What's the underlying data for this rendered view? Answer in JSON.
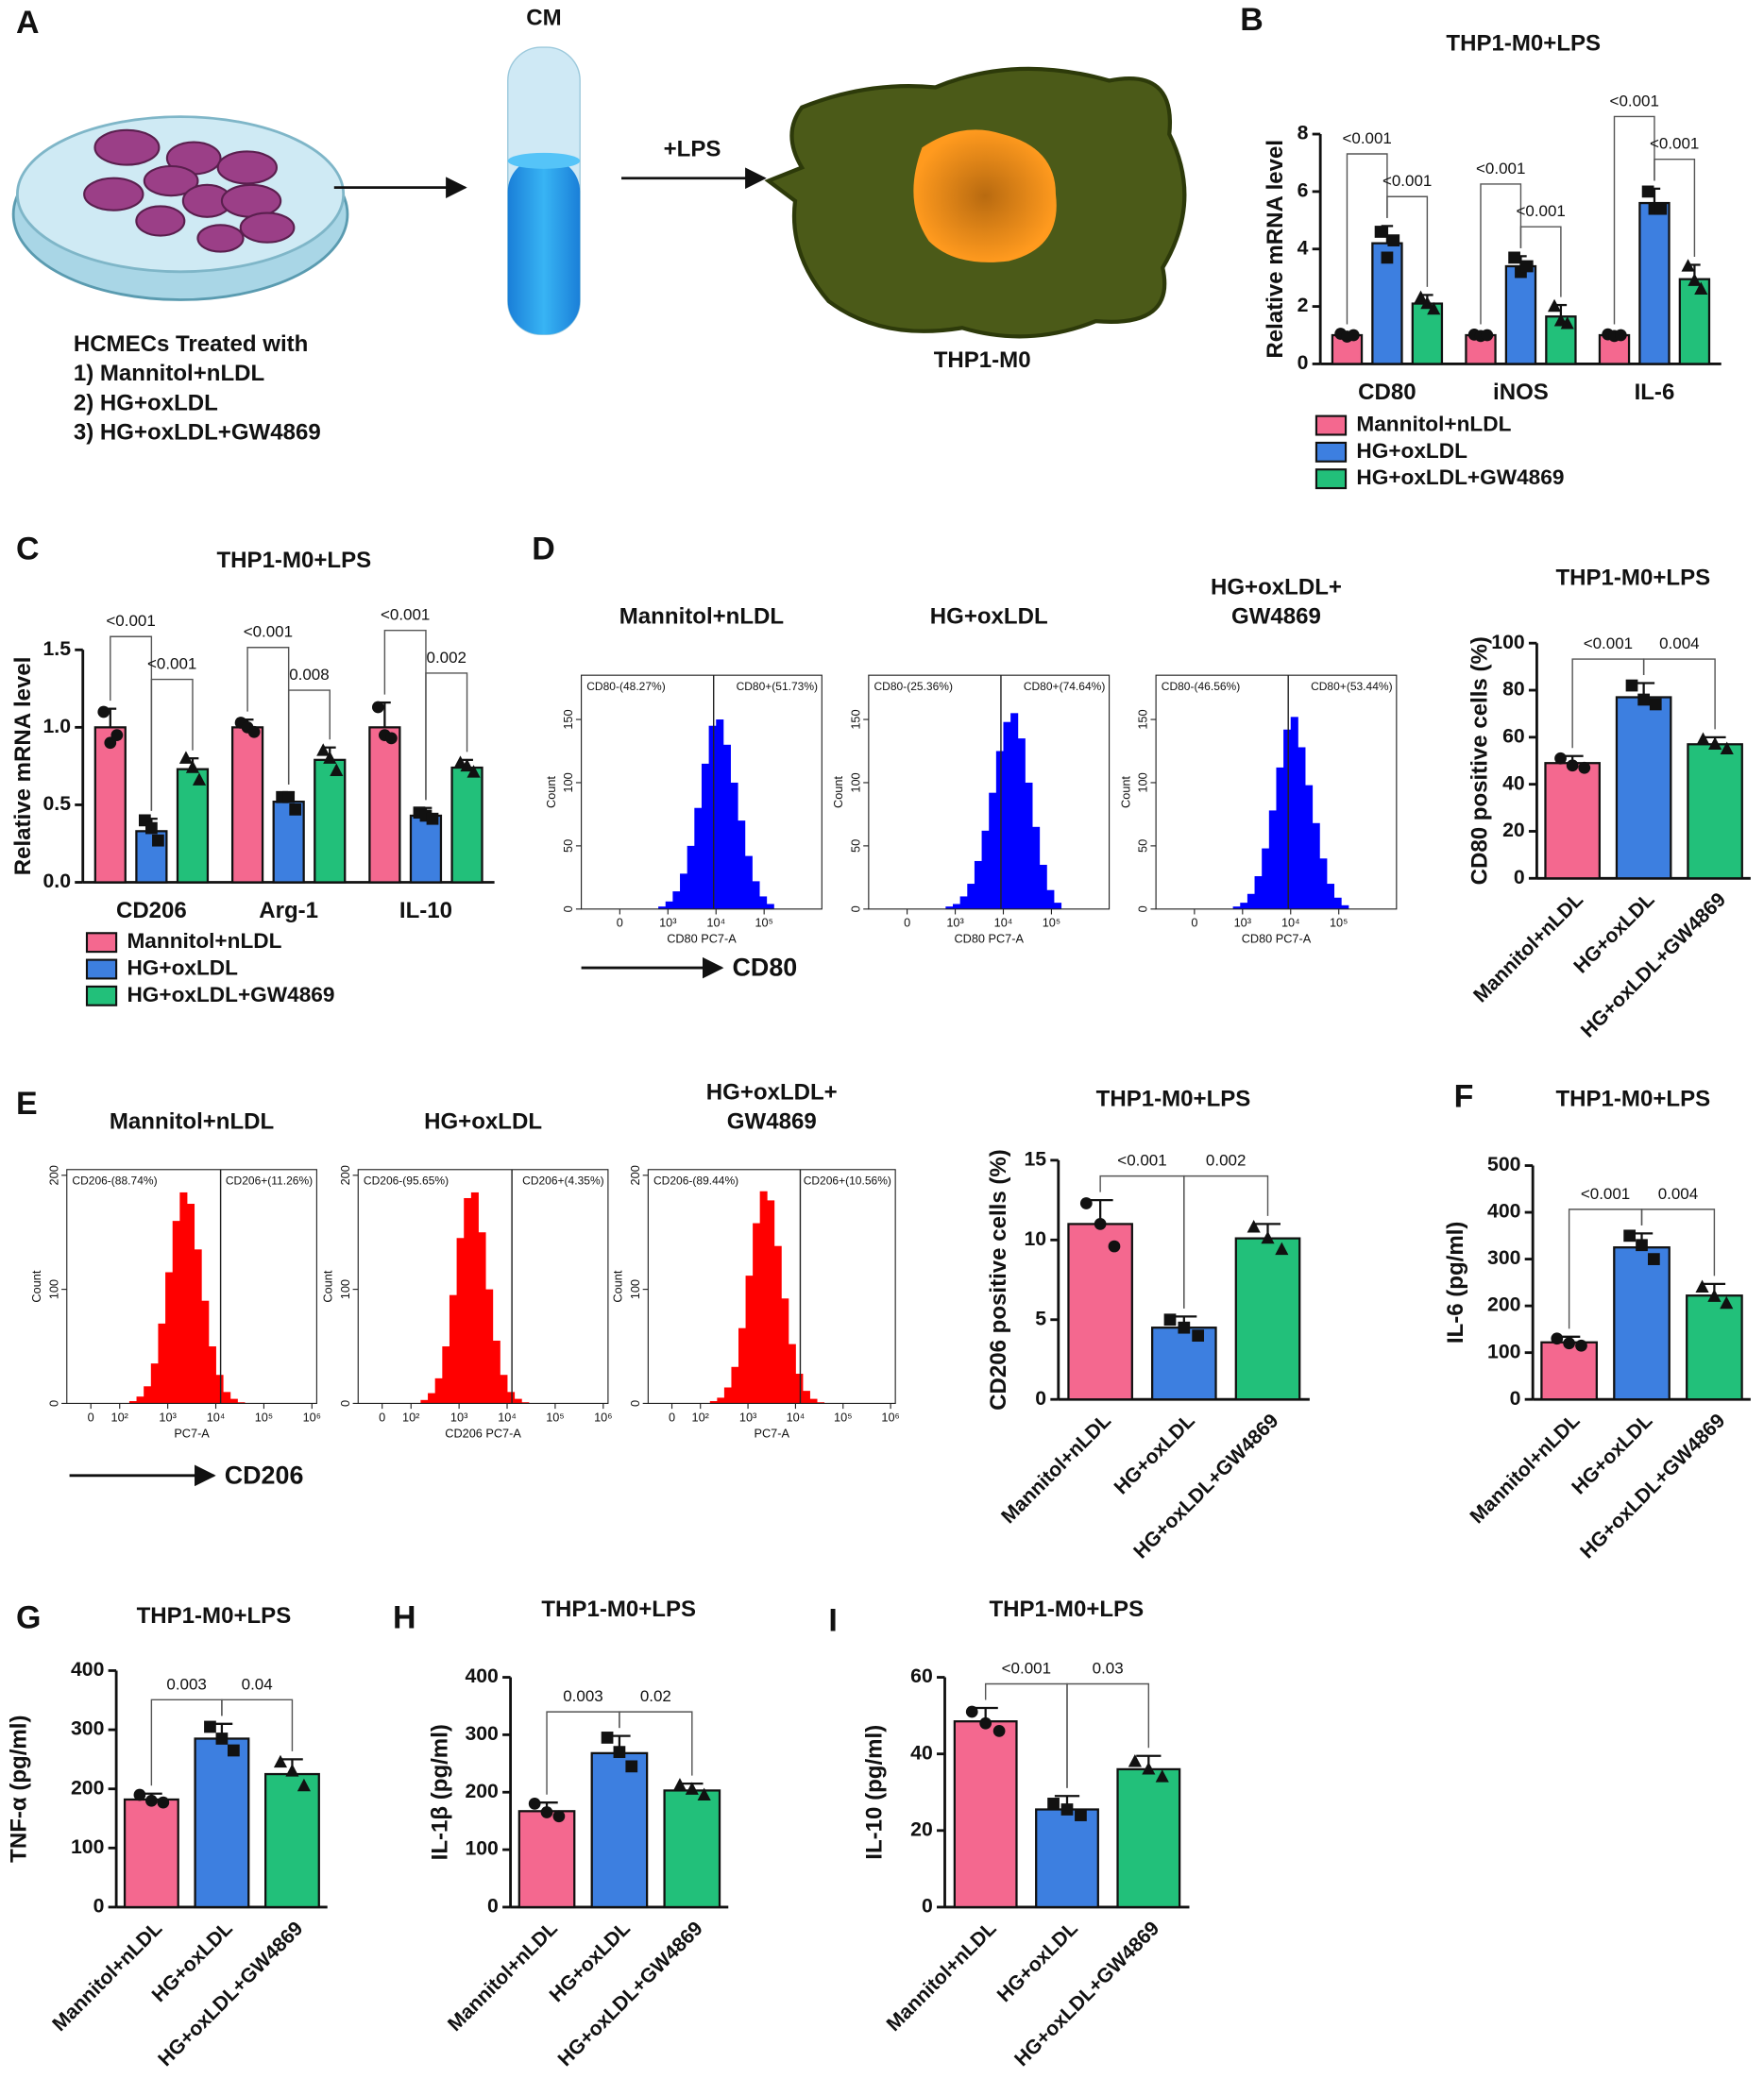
{
  "panel_labels": [
    "A",
    "B",
    "C",
    "D",
    "E",
    "F",
    "G",
    "H",
    "I"
  ],
  "diagram": {
    "tube_label": "CM",
    "treatment": "+LPS",
    "cell_label": "THP1-M0",
    "caption": [
      "HCMECs Treated with",
      "1) Mannitol+nLDL",
      "2) HG+oxLDL",
      "3) HG+oxLDL+GW4869"
    ]
  },
  "chart_data": [
    {
      "type": "grouped_bar",
      "title": "THP1-M0+LPS",
      "ylabel": "Relative mRNA level",
      "categories": [
        "CD80",
        "iNOS",
        "IL-6"
      ],
      "ylim": [
        0,
        8
      ],
      "yticks": [
        0,
        2,
        4,
        6,
        8
      ],
      "series": [
        {
          "name": "Mannitol+nLDL",
          "color": "#f4688f",
          "marker": "circle",
          "values": [
            1.0,
            1.0,
            1.0
          ],
          "errors": [
            0.1,
            0.1,
            0.1
          ],
          "points": [
            [
              1.05,
              0.95,
              1.0
            ],
            [
              1.02,
              0.97,
              1.0
            ],
            [
              1.03,
              0.97,
              1.0
            ]
          ]
        },
        {
          "name": "HG+oxLDL",
          "color": "#3d7fe0",
          "marker": "square",
          "values": [
            4.2,
            3.4,
            5.6
          ],
          "errors": [
            0.6,
            0.35,
            0.5
          ],
          "points": [
            [
              4.6,
              3.7,
              4.3
            ],
            [
              3.7,
              3.2,
              3.4
            ],
            [
              6.0,
              5.4,
              5.4
            ]
          ]
        },
        {
          "name": "HG+oxLDL+GW4869",
          "color": "#22c07a",
          "marker": "triangle",
          "values": [
            2.1,
            1.65,
            2.95
          ],
          "errors": [
            0.3,
            0.4,
            0.5
          ],
          "points": [
            [
              2.3,
              2.1,
              1.9
            ],
            [
              2.0,
              1.5,
              1.4
            ],
            [
              3.4,
              2.9,
              2.6
            ]
          ]
        }
      ],
      "comparisons": [
        {
          "category": 0,
          "pair": [
            0,
            1
          ],
          "label": "<0.001"
        },
        {
          "category": 0,
          "pair": [
            1,
            2
          ],
          "label": "<0.001"
        },
        {
          "category": 1,
          "pair": [
            0,
            1
          ],
          "label": "<0.001"
        },
        {
          "category": 1,
          "pair": [
            1,
            2
          ],
          "label": "<0.001"
        },
        {
          "category": 2,
          "pair": [
            0,
            1
          ],
          "label": "<0.001"
        },
        {
          "category": 2,
          "pair": [
            1,
            2
          ],
          "label": "<0.001"
        }
      ]
    },
    {
      "type": "grouped_bar",
      "title": "THP1-M0+LPS",
      "ylabel": "Relative mRNA level",
      "categories": [
        "CD206",
        "Arg-1",
        "IL-10"
      ],
      "ylim": [
        0,
        1.5
      ],
      "yticks": [
        {
          "value": 0,
          "label": "0.0"
        },
        0.5,
        {
          "value": 1,
          "label": "1.0"
        },
        1.5
      ],
      "series": [
        {
          "name": "Mannitol+nLDL",
          "color": "#f4688f",
          "marker": "circle",
          "values": [
            1.0,
            1.0,
            1.0
          ],
          "errors": [
            0.12,
            0.05,
            0.16
          ],
          "points": [
            [
              1.1,
              0.9,
              0.95
            ],
            [
              1.03,
              1.0,
              0.97
            ],
            [
              1.13,
              0.95,
              0.93
            ]
          ]
        },
        {
          "name": "HG+oxLDL",
          "color": "#3d7fe0",
          "marker": "square",
          "values": [
            0.33,
            0.52,
            0.43
          ],
          "errors": [
            0.08,
            0.06,
            0.05
          ],
          "points": [
            [
              0.4,
              0.35,
              0.27
            ],
            [
              0.55,
              0.55,
              0.47
            ],
            [
              0.45,
              0.43,
              0.41
            ]
          ]
        },
        {
          "name": "HG+oxLDL+GW4869",
          "color": "#22c07a",
          "marker": "triangle",
          "values": [
            0.73,
            0.79,
            0.74
          ],
          "errors": [
            0.07,
            0.08,
            0.05
          ],
          "points": [
            [
              0.8,
              0.74,
              0.66
            ],
            [
              0.85,
              0.8,
              0.72
            ],
            [
              0.77,
              0.75,
              0.71
            ]
          ]
        }
      ],
      "comparisons": [
        {
          "category": 0,
          "pair": [
            0,
            1
          ],
          "label": "<0.001"
        },
        {
          "category": 0,
          "pair": [
            1,
            2
          ],
          "label": "<0.001"
        },
        {
          "category": 1,
          "pair": [
            0,
            1
          ],
          "label": "<0.001"
        },
        {
          "category": 1,
          "pair": [
            1,
            2
          ],
          "label": "0.008"
        },
        {
          "category": 2,
          "pair": [
            0,
            1
          ],
          "label": "<0.001"
        },
        {
          "category": 2,
          "pair": [
            1,
            2
          ],
          "label": "0.002"
        }
      ]
    },
    {
      "type": "bar",
      "title": "THP1-M0+LPS",
      "ylabel": "CD80 positive cells (%)",
      "categories": [
        "Mannitol+nLDL",
        "HG+oxLDL",
        "HG+oxLDL+GW4869"
      ],
      "colors": [
        "#f4688f",
        "#3d7fe0",
        "#22c07a"
      ],
      "markers": [
        "circle",
        "square",
        "triangle"
      ],
      "ylim": [
        0,
        100
      ],
      "yticks": [
        0,
        20,
        40,
        60,
        80,
        100
      ],
      "values": [
        49,
        77,
        57
      ],
      "errors": [
        3,
        6,
        3
      ],
      "points": [
        [
          51,
          48,
          47
        ],
        [
          82,
          76,
          74
        ],
        [
          59,
          57,
          55
        ]
      ],
      "comparisons": [
        {
          "pair": [
            0,
            1
          ],
          "label": "<0.001"
        },
        {
          "pair": [
            1,
            2
          ],
          "label": "0.004"
        }
      ]
    },
    {
      "type": "bar",
      "title": "THP1-M0+LPS",
      "ylabel": "CD206 positive cells (%)",
      "categories": [
        "Mannitol+nLDL",
        "HG+oxLDL",
        "HG+oxLDL+GW4869"
      ],
      "colors": [
        "#f4688f",
        "#3d7fe0",
        "#22c07a"
      ],
      "markers": [
        "circle",
        "square",
        "triangle"
      ],
      "ylim": [
        0,
        15
      ],
      "yticks": [
        0,
        5,
        10,
        15
      ],
      "values": [
        11,
        4.5,
        10.1
      ],
      "errors": [
        1.5,
        0.7,
        0.9
      ],
      "points": [
        [
          12.3,
          11,
          9.6
        ],
        [
          5,
          4.5,
          4
        ],
        [
          10.8,
          10.1,
          9.4
        ]
      ],
      "comparisons": [
        {
          "pair": [
            0,
            1
          ],
          "label": "<0.001"
        },
        {
          "pair": [
            1,
            2
          ],
          "label": "0.002"
        }
      ]
    },
    {
      "type": "bar",
      "title": "THP1-M0+LPS",
      "ylabel": "IL-6 (pg/ml)",
      "categories": [
        "Mannitol+nLDL",
        "HG+oxLDL",
        "HG+oxLDL+GW4869"
      ],
      "colors": [
        "#f4688f",
        "#3d7fe0",
        "#22c07a"
      ],
      "markers": [
        "circle",
        "square",
        "triangle"
      ],
      "ylim": [
        0,
        500
      ],
      "yticks": [
        0,
        100,
        200,
        300,
        400,
        500
      ],
      "values": [
        122,
        325,
        222
      ],
      "errors": [
        12,
        30,
        25
      ],
      "points": [
        [
          130,
          120,
          115
        ],
        [
          350,
          330,
          300
        ],
        [
          240,
          220,
          205
        ]
      ],
      "comparisons": [
        {
          "pair": [
            0,
            1
          ],
          "label": "<0.001"
        },
        {
          "pair": [
            1,
            2
          ],
          "label": "0.004"
        }
      ]
    },
    {
      "type": "bar",
      "title": "THP1-M0+LPS",
      "ylabel": "TNF-α (pg/ml)",
      "categories": [
        "Mannitol+nLDL",
        "HG+oxLDL",
        "HG+oxLDL+GW4869"
      ],
      "colors": [
        "#f4688f",
        "#3d7fe0",
        "#22c07a"
      ],
      "markers": [
        "circle",
        "square",
        "triangle"
      ],
      "ylim": [
        0,
        400
      ],
      "yticks": [
        0,
        100,
        200,
        300,
        400
      ],
      "values": [
        182,
        285,
        225
      ],
      "errors": [
        10,
        25,
        25
      ],
      "points": [
        [
          190,
          180,
          177
        ],
        [
          305,
          285,
          265
        ],
        [
          245,
          230,
          205
        ]
      ],
      "comparisons": [
        {
          "pair": [
            0,
            1
          ],
          "label": "0.003"
        },
        {
          "pair": [
            1,
            2
          ],
          "label": "0.04"
        }
      ]
    },
    {
      "type": "bar",
      "title": "THP1-M0+LPS",
      "ylabel": "IL-1β (pg/ml)",
      "categories": [
        "Mannitol+nLDL",
        "HG+oxLDL",
        "HG+oxLDL+GW4869"
      ],
      "colors": [
        "#f4688f",
        "#3d7fe0",
        "#22c07a"
      ],
      "markers": [
        "circle",
        "square",
        "triangle"
      ],
      "ylim": [
        0,
        400
      ],
      "yticks": [
        0,
        100,
        200,
        300,
        400
      ],
      "values": [
        167,
        268,
        203
      ],
      "errors": [
        15,
        30,
        12
      ],
      "points": [
        [
          180,
          165,
          158
        ],
        [
          295,
          270,
          245
        ],
        [
          212,
          205,
          195
        ]
      ],
      "comparisons": [
        {
          "pair": [
            0,
            1
          ],
          "label": "0.003"
        },
        {
          "pair": [
            1,
            2
          ],
          "label": "0.02"
        }
      ]
    },
    {
      "type": "bar",
      "title": "THP1-M0+LPS",
      "ylabel": "IL-10 (pg/ml)",
      "categories": [
        "Mannitol+nLDL",
        "HG+oxLDL",
        "HG+oxLDL+GW4869"
      ],
      "colors": [
        "#f4688f",
        "#3d7fe0",
        "#22c07a"
      ],
      "markers": [
        "circle",
        "square",
        "triangle"
      ],
      "ylim": [
        0,
        60
      ],
      "yticks": [
        0,
        20,
        40,
        60
      ],
      "values": [
        48.5,
        25.5,
        36
      ],
      "errors": [
        3.5,
        3.5,
        3.5
      ],
      "points": [
        [
          51,
          48,
          46
        ],
        [
          27,
          25.5,
          24
        ],
        [
          38,
          36,
          34
        ]
      ],
      "comparisons": [
        {
          "pair": [
            0,
            1
          ],
          "label": "<0.001"
        },
        {
          "pair": [
            1,
            2
          ],
          "label": "0.03"
        }
      ]
    }
  ],
  "flow_panels": [
    {
      "arrow_label": "CD80",
      "color": "#0000ff",
      "ylabel": "Count",
      "ylim": [
        0,
        185
      ],
      "yticks": [
        0,
        50,
        100,
        150
      ],
      "xlim": [
        1.2,
        6.2
      ],
      "xticks": [
        {
          "value": 2,
          "label": "0"
        },
        {
          "value": 3,
          "label": "10³"
        },
        {
          "value": 4,
          "label": "10⁴"
        },
        {
          "value": 5,
          "label": "10⁵"
        }
      ],
      "plots": [
        {
          "title": [
            "Mannitol+nLDL"
          ],
          "xlabel": "CD80 PC7-A",
          "gate": 3.95,
          "gate_labels": [
            "CD80-(48.27%)",
            "CD80+(51.73%)"
          ],
          "bins": [
            2.8,
            2.95,
            3.1,
            3.25,
            3.4,
            3.55,
            3.7,
            3.85,
            4.0,
            4.15,
            4.3,
            4.45,
            4.6,
            4.75,
            4.9,
            5.05,
            5.2
          ],
          "counts": [
            2,
            6,
            14,
            28,
            50,
            80,
            115,
            145,
            150,
            130,
            100,
            70,
            42,
            22,
            10,
            4
          ]
        },
        {
          "title": [
            "HG+oxLDL"
          ],
          "xlabel": "CD80 PC7-A",
          "gate": 3.95,
          "gate_labels": [
            "CD80-(25.36%)",
            "CD80+(74.64%)"
          ],
          "bins": [
            2.8,
            2.95,
            3.1,
            3.25,
            3.4,
            3.55,
            3.7,
            3.85,
            4.0,
            4.15,
            4.3,
            4.45,
            4.6,
            4.75,
            4.9,
            5.05,
            5.2
          ],
          "counts": [
            2,
            4,
            10,
            20,
            38,
            62,
            92,
            125,
            148,
            155,
            135,
            100,
            65,
            35,
            15,
            5
          ]
        },
        {
          "title": [
            "HG+oxLDL+",
            "GW4869"
          ],
          "xlabel": "CD80 PC7-A",
          "gate": 3.95,
          "gate_labels": [
            "CD80-(46.56%)",
            "CD80+(53.44%)"
          ],
          "bins": [
            2.8,
            2.95,
            3.1,
            3.25,
            3.4,
            3.55,
            3.7,
            3.85,
            4.0,
            4.15,
            4.3,
            4.45,
            4.6,
            4.75,
            4.9,
            5.05,
            5.2
          ],
          "counts": [
            2,
            5,
            12,
            26,
            48,
            78,
            112,
            142,
            152,
            128,
            98,
            68,
            40,
            20,
            9,
            3
          ]
        }
      ]
    },
    {
      "arrow_label": "CD206",
      "color": "#ff0000",
      "ylabel": "Count",
      "ylim": [
        0,
        205
      ],
      "yticks": [
        0,
        100,
        200
      ],
      "xlim": [
        0.9,
        6.1
      ],
      "xticks": [
        {
          "value": 1.4,
          "label": "0"
        },
        {
          "value": 2,
          "label": "10²"
        },
        {
          "value": 3,
          "label": "10³"
        },
        {
          "value": 4,
          "label": "10⁴"
        },
        {
          "value": 5,
          "label": "10⁵"
        },
        {
          "value": 6,
          "label": "10⁶"
        }
      ],
      "plots": [
        {
          "title": [
            "Mannitol+nLDL"
          ],
          "xlabel": "PC7-A",
          "gate": 4.1,
          "gate_labels": [
            "CD206-(88.74%)",
            "CD206+(11.26%)"
          ],
          "bins": [
            2.2,
            2.35,
            2.5,
            2.65,
            2.8,
            2.95,
            3.1,
            3.25,
            3.4,
            3.55,
            3.7,
            3.85,
            4.0,
            4.15,
            4.3,
            4.45,
            4.6
          ],
          "counts": [
            2,
            6,
            15,
            35,
            70,
            115,
            160,
            185,
            175,
            135,
            90,
            50,
            25,
            10,
            4,
            1
          ]
        },
        {
          "title": [
            "HG+oxLDL"
          ],
          "xlabel": "CD206 PC7-A",
          "gate": 4.1,
          "gate_labels": [
            "CD206-(95.65%)",
            "CD206+(4.35%)"
          ],
          "bins": [
            2.2,
            2.35,
            2.5,
            2.65,
            2.8,
            2.95,
            3.1,
            3.25,
            3.4,
            3.55,
            3.7,
            3.85,
            4.0,
            4.15,
            4.3,
            4.45,
            4.6
          ],
          "counts": [
            3,
            9,
            22,
            50,
            95,
            145,
            180,
            185,
            150,
            100,
            55,
            25,
            10,
            4,
            1,
            0
          ]
        },
        {
          "title": [
            "HG+oxLDL+",
            "GW4869"
          ],
          "xlabel": "PC7-A",
          "gate": 4.1,
          "gate_labels": [
            "CD206-(89.44%)",
            "CD206+(10.56%)"
          ],
          "bins": [
            2.2,
            2.35,
            2.5,
            2.65,
            2.8,
            2.95,
            3.1,
            3.25,
            3.4,
            3.55,
            3.7,
            3.85,
            4.0,
            4.15,
            4.3,
            4.45,
            4.6
          ],
          "counts": [
            2,
            5,
            14,
            32,
            66,
            112,
            158,
            186,
            178,
            138,
            92,
            52,
            26,
            11,
            4,
            1
          ]
        }
      ]
    }
  ]
}
